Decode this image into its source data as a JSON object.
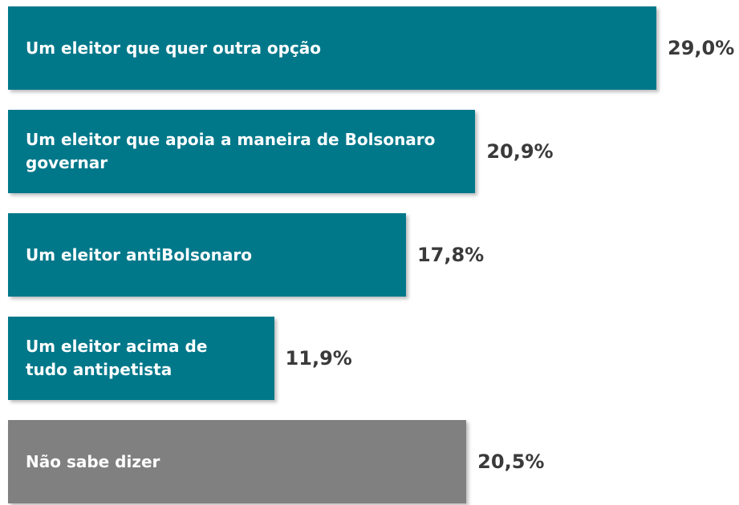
{
  "chart_data": {
    "type": "bar",
    "categories": [
      "Um eleitor que quer outra opção",
      "Um eleitor que apoia a maneira de Bolsonaro governar",
      "Um eleitor antiBolsonaro",
      "Um eleitor acima de tudo antipetista",
      "Não sabe dizer"
    ],
    "values": [
      29.0,
      20.9,
      17.8,
      11.9,
      20.5
    ],
    "value_labels": [
      "29,0%",
      "20,9%",
      "17,8%",
      "11,9%",
      "20,5%"
    ],
    "colors": [
      "#00788a",
      "#00788a",
      "#00788a",
      "#00788a",
      "#808080"
    ]
  }
}
